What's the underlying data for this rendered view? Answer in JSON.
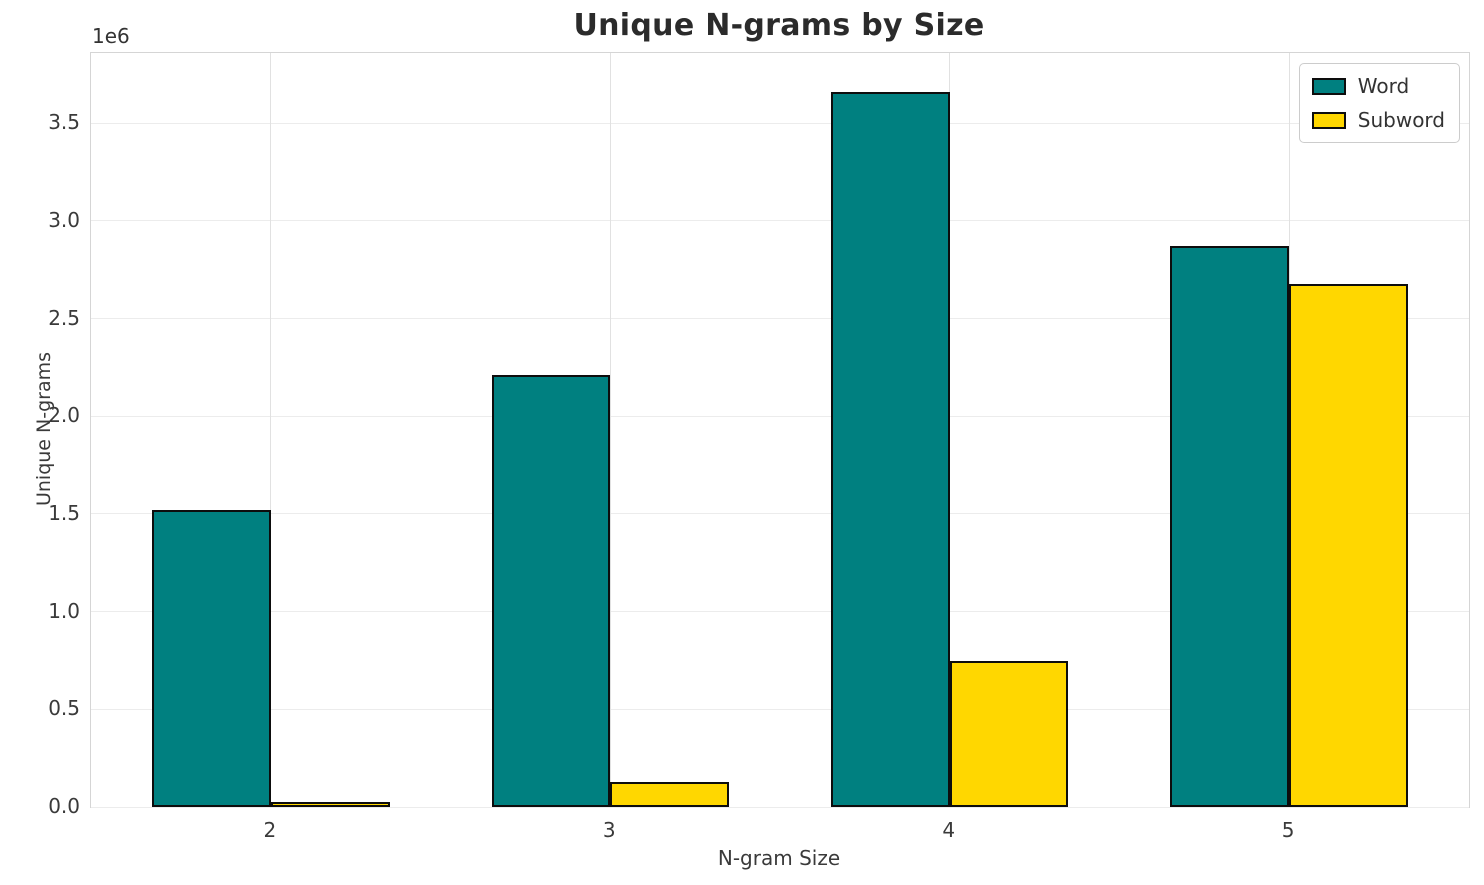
{
  "chart_data": {
    "type": "bar",
    "title": "Unique N-grams by Size",
    "xlabel": "N-gram Size",
    "ylabel": "Unique N-grams",
    "y_offset_text": "1e6",
    "categories": [
      "2",
      "3",
      "4",
      "5"
    ],
    "x_positions": [
      2,
      3,
      4,
      5
    ],
    "series": [
      {
        "name": "Word",
        "color": "#008080",
        "values": [
          1520000,
          2210000,
          3660000,
          2870000
        ]
      },
      {
        "name": "Subword",
        "color": "#FFD700",
        "values": [
          15000,
          130000,
          750000,
          2680000
        ]
      }
    ],
    "bar_width_units": 0.35,
    "bar_edge_color": "#0d0d0d",
    "xlim": [
      1.47,
      5.53
    ],
    "ylim": [
      0,
      3860000
    ],
    "yticks": [
      0,
      500000,
      1000000,
      1500000,
      2000000,
      2500000,
      3000000,
      3500000
    ],
    "ytick_labels": [
      "0.0",
      "0.5",
      "1.0",
      "1.5",
      "2.0",
      "2.5",
      "3.0",
      "3.5"
    ],
    "grid": true,
    "legend_position": "upper right"
  }
}
